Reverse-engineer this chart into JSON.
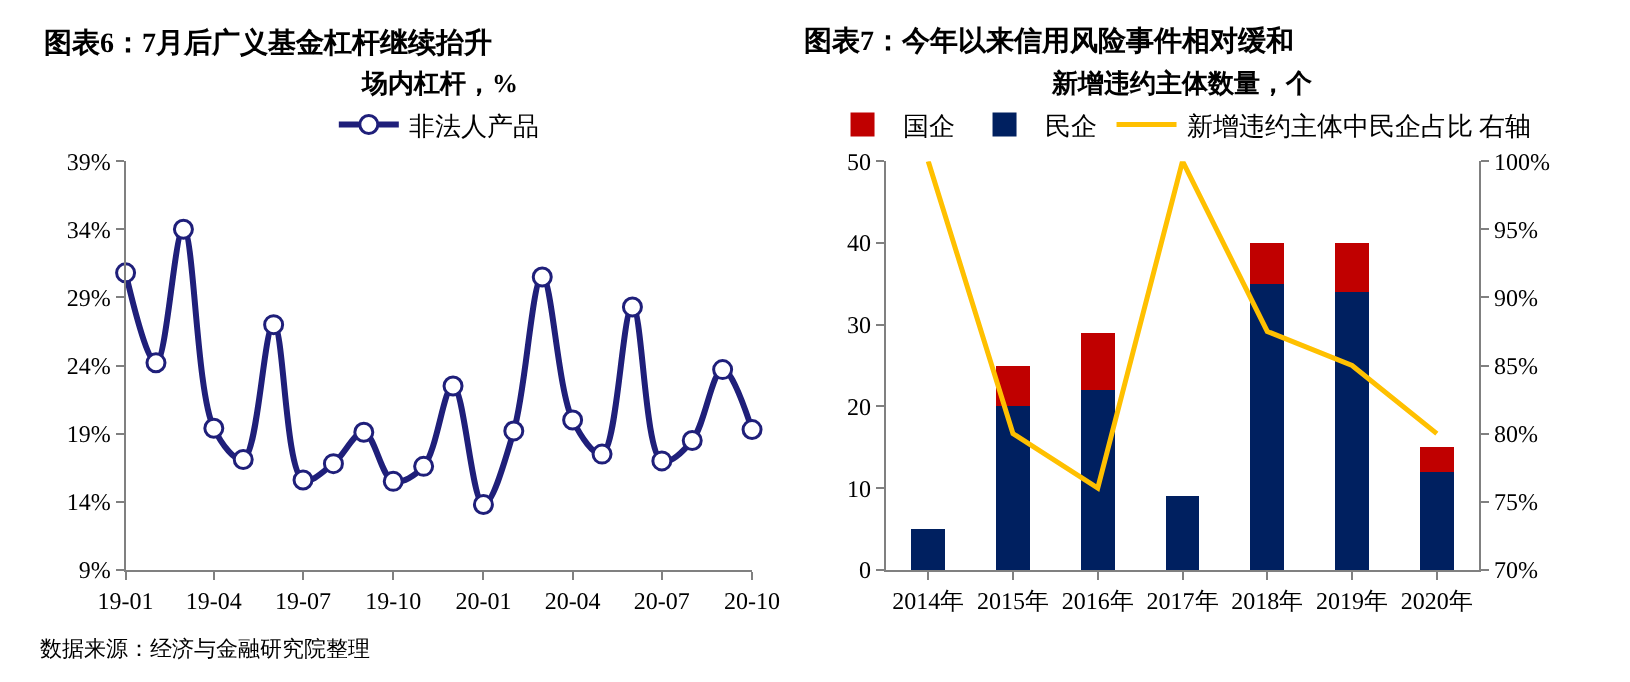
{
  "chart_data": [
    {
      "type": "line",
      "title": "图表6：7月后广义基金杠杆继续抬升",
      "subtitle": "场内杠杆，%",
      "x": [
        "2019-01",
        "2019-02",
        "2019-03",
        "2019-04",
        "2019-05",
        "2019-06",
        "2019-07",
        "2019-08",
        "2019-09",
        "2019-10",
        "2019-11",
        "2019-12",
        "2020-01",
        "2020-02",
        "2020-03",
        "2020-04",
        "2020-05",
        "2020-06",
        "2020-07",
        "2020-08",
        "2020-09",
        "2020-10"
      ],
      "series": [
        {
          "name": "非法人产品",
          "color": "#1f1f7a",
          "values": [
            30.8,
            24.2,
            34.0,
            19.4,
            17.1,
            27.0,
            15.6,
            16.8,
            19.1,
            15.5,
            16.6,
            22.5,
            13.8,
            19.2,
            30.5,
            20.0,
            17.5,
            28.3,
            17.0,
            18.5,
            23.7,
            19.3
          ]
        }
      ],
      "xlim": [
        "2019-01",
        "2020-10"
      ],
      "xticks": [
        {
          "value": "2019-01",
          "label": "19-01"
        },
        {
          "value": "2019-04",
          "label": "19-04"
        },
        {
          "value": "2019-07",
          "label": "19-07"
        },
        {
          "value": "2019-10",
          "label": "19-10"
        },
        {
          "value": "2020-01",
          "label": "20-01"
        },
        {
          "value": "2020-04",
          "label": "20-04"
        },
        {
          "value": "2020-07",
          "label": "20-07"
        },
        {
          "value": "2020-10",
          "label": "20-10"
        }
      ],
      "ylim": [
        9,
        39
      ],
      "yticks": [
        {
          "value": 9,
          "label": "9%"
        },
        {
          "value": 14,
          "label": "14%"
        },
        {
          "value": 19,
          "label": "19%"
        },
        {
          "value": 24,
          "label": "24%"
        },
        {
          "value": 29,
          "label": "29%"
        },
        {
          "value": 34,
          "label": "34%"
        },
        {
          "value": 39,
          "label": "39%"
        }
      ],
      "marker": "circle",
      "legend": "top",
      "annotations": [
        "数据来源：经济与金融研究院整理"
      ]
    },
    {
      "type": "bar",
      "stacked": true,
      "title": "图表7：今年以来信用风险事件相对缓和",
      "subtitle": "新增违约主体数量，个",
      "categories": [
        "2014年",
        "2015年",
        "2016年",
        "2017年",
        "2018年",
        "2019年",
        "2020年"
      ],
      "series": [
        {
          "name": "民企",
          "color": "#002060",
          "values": [
            5,
            20,
            22,
            9,
            35,
            34,
            12
          ]
        },
        {
          "name": "国企",
          "color": "#c00000",
          "values": [
            0,
            5,
            7,
            0,
            5,
            6,
            3
          ]
        },
        {
          "name": "新增违约主体中民企占比 右轴",
          "type": "line",
          "axis": "y2",
          "color": "#ffc000",
          "values": [
            100,
            80,
            76,
            100,
            87.5,
            85,
            80
          ]
        }
      ],
      "ylim": [
        0,
        50
      ],
      "yticks": [
        0,
        10,
        20,
        30,
        40,
        50
      ],
      "y2lim": [
        70,
        100
      ],
      "y2ticks": [
        {
          "value": 70,
          "label": "70%"
        },
        {
          "value": 75,
          "label": "75%"
        },
        {
          "value": 80,
          "label": "80%"
        },
        {
          "value": 85,
          "label": "85%"
        },
        {
          "value": 90,
          "label": "90%"
        },
        {
          "value": 95,
          "label": "95%"
        },
        {
          "value": 100,
          "label": "100%"
        }
      ],
      "legend": "top"
    }
  ]
}
